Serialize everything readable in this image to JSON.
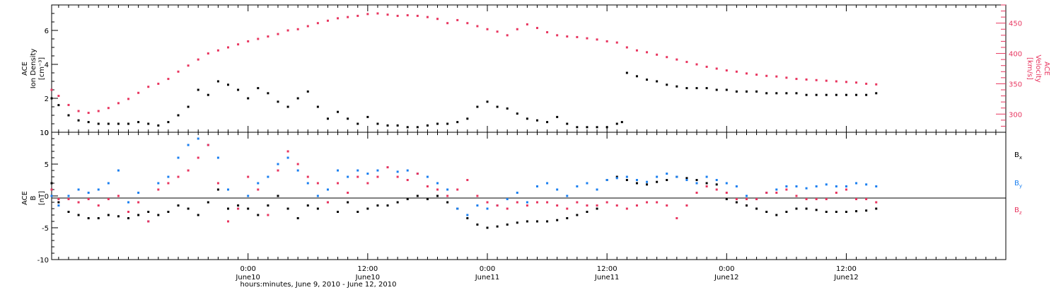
{
  "colors": {
    "black": "#000000",
    "pink": "#e8355f",
    "blue": "#1a7ff0"
  },
  "xaxis": {
    "label": "hours:minutes, June  9, 2010 - June 12, 2010",
    "tick_hours": [
      24,
      36,
      48,
      60,
      72,
      84
    ],
    "tick_times": [
      "0:00",
      "12:00",
      "0:00",
      "12:00",
      "0:00",
      "12:00"
    ],
    "tick_days": [
      "June10",
      "June10",
      "June11",
      "June11",
      "June12",
      "June12"
    ],
    "range_hours": [
      4.3,
      100
    ],
    "minor_step_hours": 1
  },
  "top_panel": {
    "left_label": [
      "ACE",
      "Ion Density",
      "[cm⁻³]"
    ],
    "right_label": [
      "ACE",
      "Velocity",
      "[km/s]"
    ],
    "left_ticks": [
      "0",
      "2",
      "4",
      "6"
    ],
    "left_tick_values": [
      0,
      2,
      4,
      6
    ],
    "right_ticks": [
      "300",
      "350",
      "400",
      "450"
    ],
    "right_tick_values": [
      300,
      350,
      400,
      450
    ]
  },
  "bottom_panel": {
    "left_label": [
      "ACE",
      "B",
      "[nT]"
    ],
    "ticks": [
      "10",
      "5",
      "0",
      "-5",
      "-10"
    ],
    "tick_values": [
      10,
      5,
      0,
      -5,
      -10
    ],
    "legend": [
      {
        "name": "B",
        "sub": "x",
        "color": "#000000"
      },
      {
        "name": "B",
        "sub": "y",
        "color": "#1a7ff0"
      },
      {
        "name": "B",
        "sub": "z",
        "color": "#e8355f"
      }
    ]
  },
  "chart_data": [
    {
      "type": "scatter",
      "title": "",
      "x_unit": "hours since June 9, 2010 00:00",
      "xlim": [
        4.3,
        100
      ],
      "ylim_left": [
        0,
        7.5
      ],
      "ylim_right": [
        270,
        480
      ],
      "series": [
        {
          "name": "Ion Density",
          "axis": "left",
          "color": "#000000",
          "x": [
            4.3,
            5,
            6,
            7,
            8,
            9,
            10,
            11,
            12,
            13,
            14,
            15,
            16,
            17,
            18,
            19,
            20,
            21,
            22,
            23,
            24,
            25,
            26,
            27,
            28,
            29,
            30,
            31,
            32,
            33,
            34,
            35,
            36,
            37,
            38,
            39,
            40,
            41,
            42,
            43,
            44,
            45,
            46,
            47,
            48,
            49,
            50,
            51,
            52,
            53,
            54,
            55,
            56,
            57,
            58,
            59,
            60,
            61,
            61.5,
            62,
            63,
            64,
            65,
            66,
            67,
            68,
            69,
            70,
            71,
            72,
            73,
            74,
            75,
            76,
            77,
            78,
            79,
            80,
            81,
            82,
            83,
            84,
            85,
            86,
            87
          ],
          "y": [
            2.0,
            1.6,
            1.0,
            0.7,
            0.6,
            0.5,
            0.5,
            0.5,
            0.5,
            0.6,
            0.5,
            0.4,
            0.6,
            1.0,
            1.5,
            2.5,
            2.2,
            3.0,
            2.8,
            2.5,
            2.0,
            2.6,
            2.3,
            1.8,
            1.5,
            2.0,
            2.4,
            1.5,
            0.8,
            1.2,
            0.8,
            0.5,
            0.9,
            0.5,
            0.4,
            0.4,
            0.3,
            0.3,
            0.4,
            0.5,
            0.5,
            0.6,
            0.8,
            1.5,
            1.8,
            1.5,
            1.4,
            1.1,
            0.8,
            0.7,
            0.6,
            0.9,
            0.5,
            0.3,
            0.3,
            0.3,
            0.3,
            0.5,
            0.6,
            3.5,
            3.3,
            3.1,
            3.0,
            2.8,
            2.7,
            2.6,
            2.6,
            2.6,
            2.5,
            2.5,
            2.4,
            2.4,
            2.4,
            2.3,
            2.3,
            2.3,
            2.3,
            2.2,
            2.2,
            2.2,
            2.2,
            2.2,
            2.2,
            2.2,
            2.3
          ]
        },
        {
          "name": "Velocity",
          "axis": "right",
          "color": "#e8355f",
          "x": [
            4.3,
            5,
            6,
            7,
            8,
            9,
            10,
            11,
            12,
            13,
            14,
            15,
            16,
            17,
            18,
            19,
            20,
            21,
            22,
            23,
            24,
            25,
            26,
            27,
            28,
            29,
            30,
            31,
            32,
            33,
            34,
            35,
            36,
            37,
            38,
            39,
            40,
            41,
            42,
            43,
            44,
            45,
            46,
            47,
            48,
            49,
            50,
            51,
            52,
            53,
            54,
            55,
            56,
            57,
            58,
            59,
            60,
            61,
            62,
            63,
            64,
            65,
            66,
            67,
            68,
            69,
            70,
            71,
            72,
            73,
            74,
            75,
            76,
            77,
            78,
            79,
            80,
            81,
            82,
            83,
            84,
            85,
            86,
            87
          ],
          "y": [
            340,
            330,
            315,
            305,
            302,
            305,
            310,
            318,
            325,
            335,
            345,
            350,
            358,
            370,
            380,
            390,
            400,
            405,
            410,
            415,
            420,
            424,
            428,
            432,
            438,
            440,
            445,
            450,
            454,
            458,
            460,
            462,
            465,
            466,
            464,
            462,
            463,
            462,
            460,
            457,
            450,
            455,
            450,
            445,
            440,
            436,
            430,
            440,
            448,
            442,
            435,
            430,
            428,
            427,
            425,
            423,
            420,
            418,
            410,
            405,
            402,
            398,
            394,
            390,
            386,
            382,
            378,
            375,
            372,
            370,
            367,
            365,
            363,
            362,
            360,
            358,
            357,
            356,
            355,
            354,
            353,
            352,
            350,
            349
          ]
        }
      ]
    },
    {
      "type": "scatter",
      "title": "",
      "x_unit": "hours since June 9, 2010 00:00",
      "xlim": [
        4.3,
        100
      ],
      "ylim": [
        -10,
        10
      ],
      "series": [
        {
          "name": "Bx",
          "color": "#000000",
          "x": [
            4.3,
            5,
            6,
            7,
            8,
            9,
            10,
            11,
            12,
            13,
            14,
            15,
            16,
            17,
            18,
            19,
            20,
            21,
            22,
            23,
            24,
            25,
            26,
            27,
            28,
            29,
            30,
            31,
            32,
            33,
            34,
            35,
            36,
            37,
            38,
            39,
            40,
            41,
            42,
            43,
            44,
            45,
            46,
            47,
            48,
            49,
            50,
            51,
            52,
            53,
            54,
            55,
            56,
            57,
            58,
            59,
            60,
            61,
            62,
            63,
            64,
            65,
            66,
            67,
            68,
            69,
            70,
            71,
            72,
            73,
            74,
            75,
            76,
            77,
            78,
            79,
            80,
            81,
            82,
            83,
            84,
            85,
            86,
            87
          ],
          "y": [
            2.0,
            -1.0,
            -2.5,
            -3.0,
            -3.5,
            -3.5,
            -3.0,
            -3.2,
            -3.5,
            -3.0,
            -2.5,
            -3.0,
            -2.5,
            -1.5,
            -2.0,
            -3.0,
            -1.0,
            1.0,
            -2.0,
            -1.5,
            -2.0,
            -3.0,
            -1.5,
            0.0,
            -2.0,
            -3.5,
            -1.5,
            -2.0,
            -1.0,
            -2.5,
            -1.0,
            -2.5,
            -2.0,
            -1.5,
            -1.5,
            -1.0,
            -0.5,
            0.0,
            -0.5,
            0.0,
            -1.0,
            -2.0,
            -3.5,
            -4.5,
            -5.0,
            -4.8,
            -4.5,
            -4.2,
            -4.0,
            -4.0,
            -4.0,
            -3.8,
            -3.5,
            -3.0,
            -2.5,
            -2.0,
            2.5,
            3.0,
            2.5,
            2.0,
            1.8,
            2.2,
            2.5,
            3.0,
            2.8,
            2.5,
            2.0,
            1.8,
            -0.5,
            -1.0,
            -1.5,
            -2.0,
            -2.5,
            -3.0,
            -2.5,
            -2.0,
            -2.0,
            -2.2,
            -2.5,
            -2.5,
            -2.5,
            -2.4,
            -2.3,
            -2.0
          ]
        },
        {
          "name": "By",
          "color": "#1a7ff0",
          "x": [
            4.3,
            5,
            6,
            7,
            8,
            9,
            10,
            11,
            12,
            13,
            14,
            15,
            16,
            17,
            18,
            19,
            20,
            21,
            22,
            23,
            24,
            25,
            26,
            27,
            28,
            29,
            30,
            31,
            32,
            33,
            34,
            35,
            36,
            37,
            38,
            39,
            40,
            41,
            42,
            43,
            44,
            45,
            46,
            47,
            48,
            49,
            50,
            51,
            52,
            53,
            54,
            55,
            56,
            57,
            58,
            59,
            60,
            61,
            62,
            63,
            64,
            65,
            66,
            67,
            68,
            69,
            70,
            71,
            72,
            73,
            74,
            75,
            76,
            77,
            78,
            79,
            80,
            81,
            82,
            83,
            84,
            85,
            86,
            87
          ],
          "y": [
            0.0,
            -1.5,
            0.0,
            1.0,
            0.5,
            1.0,
            2.0,
            4.0,
            -1.0,
            0.5,
            -4.0,
            2.0,
            3.0,
            6.0,
            8.0,
            9.0,
            8.0,
            6.0,
            1.0,
            -2.0,
            0.0,
            2.0,
            3.0,
            5.0,
            6.0,
            4.0,
            2.0,
            0.0,
            1.0,
            4.0,
            3.0,
            4.0,
            3.5,
            4.0,
            4.5,
            3.8,
            4.0,
            3.5,
            3.0,
            2.0,
            1.0,
            -2.0,
            -3.0,
            -1.5,
            -2.0,
            -1.5,
            -0.5,
            0.5,
            -1.0,
            1.5,
            2.0,
            1.0,
            0.0,
            1.5,
            2.0,
            1.0,
            2.5,
            2.8,
            3.0,
            2.5,
            2.2,
            3.0,
            3.5,
            3.0,
            2.5,
            2.0,
            3.0,
            2.5,
            2.0,
            1.5,
            0.0,
            -0.5,
            0.5,
            1.0,
            1.5,
            1.5,
            1.2,
            1.5,
            1.8,
            1.5,
            1.5,
            2.0,
            1.8,
            1.5
          ]
        },
        {
          "name": "Bz",
          "color": "#e8355f",
          "x": [
            4.3,
            5,
            6,
            7,
            8,
            9,
            10,
            11,
            12,
            13,
            14,
            15,
            16,
            17,
            18,
            19,
            20,
            21,
            22,
            23,
            24,
            25,
            26,
            27,
            28,
            29,
            30,
            31,
            32,
            33,
            34,
            35,
            36,
            37,
            38,
            39,
            40,
            41,
            42,
            43,
            44,
            45,
            46,
            47,
            48,
            49,
            50,
            51,
            52,
            53,
            54,
            55,
            56,
            57,
            58,
            59,
            60,
            61,
            62,
            63,
            64,
            65,
            66,
            67,
            68,
            69,
            70,
            71,
            72,
            73,
            74,
            75,
            76,
            77,
            78,
            79,
            80,
            81,
            82,
            83,
            84,
            85,
            86,
            87
          ],
          "y": [
            1.0,
            -0.5,
            -0.5,
            -1.0,
            -0.5,
            -1.5,
            -0.5,
            0.0,
            -2.5,
            -1.0,
            -4.0,
            1.0,
            2.0,
            3.0,
            4.0,
            6.0,
            8.0,
            2.0,
            -4.0,
            -2.0,
            3.0,
            1.0,
            -3.0,
            4.0,
            7.0,
            5.0,
            3.0,
            2.0,
            -1.0,
            2.0,
            0.5,
            3.0,
            2.0,
            3.0,
            4.5,
            3.0,
            2.5,
            3.5,
            1.5,
            1.0,
            0.0,
            1.0,
            2.5,
            0.0,
            -1.0,
            -1.5,
            -2.0,
            -1.0,
            -1.5,
            -1.0,
            -1.0,
            -1.5,
            -2.0,
            -1.0,
            -1.5,
            -1.5,
            -1.0,
            -1.5,
            -2.0,
            -1.5,
            -1.0,
            -1.0,
            -1.5,
            -3.5,
            -1.5,
            0.5,
            1.5,
            1.0,
            0.5,
            -0.5,
            -0.5,
            -0.5,
            0.5,
            0.5,
            1.0,
            0.0,
            -0.5,
            -0.5,
            -0.5,
            0.5,
            1.0,
            -0.5,
            -0.5,
            -1.0
          ]
        }
      ]
    }
  ]
}
